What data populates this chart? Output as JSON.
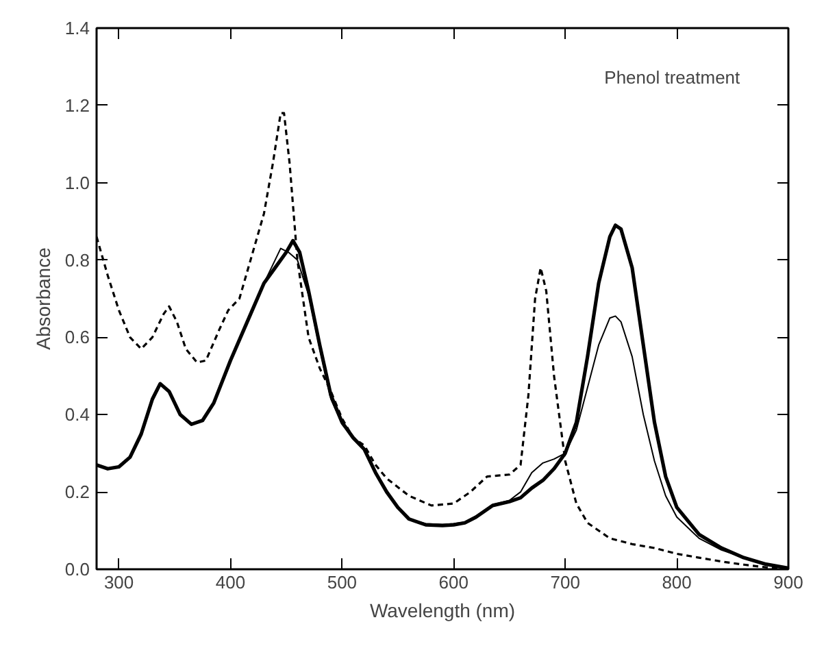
{
  "chart_data": {
    "type": "line",
    "xlabel": "Wavelength (nm)",
    "ylabel": "Absorbance",
    "annotations": [
      "Phenol treatment"
    ],
    "xlim": [
      280,
      900
    ],
    "ylim": [
      0,
      1.4
    ],
    "xticks": [
      300,
      400,
      500,
      600,
      700,
      800,
      900
    ],
    "yticks": [
      {
        "value": 0,
        "label": "0.0"
      },
      {
        "value": 0.2,
        "label": "0.2"
      },
      {
        "value": 0.4,
        "label": "0.4"
      },
      {
        "value": 0.6,
        "label": "0.6"
      },
      {
        "value": 0.8,
        "label": "0.8"
      },
      {
        "value": 1.0,
        "label": "1.0"
      },
      {
        "value": 1.2,
        "label": "1.2"
      },
      {
        "value": 1.4,
        "label": "1.4"
      }
    ],
    "grid": false,
    "marker": "none",
    "series": [
      {
        "color": "#000000",
        "line_style": "solid",
        "x": [
          280,
          290,
          300,
          310,
          320,
          330,
          337,
          345,
          355,
          365,
          375,
          385,
          400,
          415,
          430,
          440,
          450,
          456,
          462,
          470,
          480,
          490,
          500,
          510,
          520,
          530,
          540,
          550,
          560,
          575,
          590,
          600,
          610,
          620,
          635,
          650,
          660,
          670,
          680,
          690,
          700,
          710,
          720,
          730,
          740,
          745,
          750,
          760,
          770,
          780,
          790,
          800,
          820,
          840,
          860,
          880,
          900
        ],
        "values": [
          0.27,
          0.26,
          0.265,
          0.29,
          0.35,
          0.44,
          0.48,
          0.46,
          0.4,
          0.375,
          0.385,
          0.43,
          0.54,
          0.64,
          0.74,
          0.78,
          0.82,
          0.85,
          0.82,
          0.72,
          0.58,
          0.45,
          0.38,
          0.34,
          0.31,
          0.25,
          0.2,
          0.16,
          0.13,
          0.115,
          0.113,
          0.115,
          0.12,
          0.135,
          0.165,
          0.175,
          0.185,
          0.21,
          0.23,
          0.26,
          0.3,
          0.38,
          0.55,
          0.74,
          0.86,
          0.89,
          0.88,
          0.78,
          0.58,
          0.38,
          0.24,
          0.16,
          0.09,
          0.055,
          0.03,
          0.013,
          0.003
        ]
      },
      {
        "color": "#000000",
        "line_style": "solid",
        "x": [
          280,
          290,
          300,
          310,
          320,
          330,
          337,
          345,
          355,
          365,
          375,
          385,
          400,
          415,
          430,
          440,
          445,
          452,
          460,
          470,
          480,
          490,
          500,
          510,
          520,
          530,
          540,
          550,
          560,
          575,
          590,
          600,
          610,
          620,
          635,
          650,
          660,
          670,
          680,
          690,
          700,
          710,
          720,
          730,
          740,
          745,
          750,
          760,
          770,
          780,
          790,
          800,
          820,
          840,
          860,
          880,
          900
        ],
        "values": [
          0.27,
          0.26,
          0.265,
          0.29,
          0.35,
          0.44,
          0.48,
          0.46,
          0.4,
          0.375,
          0.385,
          0.43,
          0.54,
          0.64,
          0.74,
          0.8,
          0.83,
          0.82,
          0.8,
          0.71,
          0.57,
          0.44,
          0.375,
          0.34,
          0.31,
          0.25,
          0.2,
          0.16,
          0.13,
          0.118,
          0.116,
          0.118,
          0.122,
          0.137,
          0.167,
          0.178,
          0.2,
          0.25,
          0.275,
          0.285,
          0.3,
          0.36,
          0.47,
          0.58,
          0.65,
          0.655,
          0.64,
          0.55,
          0.4,
          0.28,
          0.19,
          0.135,
          0.08,
          0.05,
          0.03,
          0.013,
          0.003
        ]
      },
      {
        "color": "#000000",
        "line_style": "dashed",
        "x": [
          280,
          290,
          300,
          310,
          320,
          330,
          340,
          345,
          352,
          360,
          370,
          378,
          390,
          398,
          408,
          420,
          430,
          438,
          445,
          448,
          453,
          460,
          470,
          480,
          490,
          500,
          510,
          520,
          530,
          540,
          560,
          580,
          600,
          615,
          630,
          650,
          660,
          667,
          673,
          678,
          683,
          690,
          700,
          710,
          720,
          740,
          760,
          780,
          800,
          820,
          840,
          860,
          880,
          900
        ],
        "values": [
          0.86,
          0.76,
          0.67,
          0.6,
          0.57,
          0.6,
          0.66,
          0.68,
          0.64,
          0.57,
          0.535,
          0.54,
          0.62,
          0.67,
          0.7,
          0.82,
          0.92,
          1.05,
          1.18,
          1.18,
          1.05,
          0.8,
          0.6,
          0.52,
          0.46,
          0.39,
          0.34,
          0.32,
          0.27,
          0.235,
          0.19,
          0.165,
          0.17,
          0.2,
          0.24,
          0.245,
          0.27,
          0.45,
          0.7,
          0.78,
          0.72,
          0.5,
          0.28,
          0.17,
          0.12,
          0.08,
          0.065,
          0.055,
          0.04,
          0.03,
          0.02,
          0.012,
          0.005,
          0
        ]
      }
    ]
  }
}
